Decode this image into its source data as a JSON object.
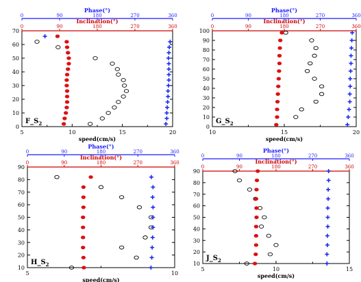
{
  "colors": {
    "inclination": "#dd1111",
    "phase": "#1a2aee",
    "speed": "#000000",
    "red_axis": "#cc0000",
    "blue_axis": "#1a1aff"
  },
  "chart_data": [
    {
      "type": "scatter",
      "panel_label": "F_S",
      "panel_sub": "2",
      "xlabel": "speed(cm/s)",
      "xlim": [
        5,
        20
      ],
      "xticks": [
        "5",
        "10",
        "15",
        "20"
      ],
      "ylim": [
        0,
        70
      ],
      "yticks": [
        "0",
        "10",
        "20",
        "30",
        "40",
        "50",
        "60",
        "70"
      ],
      "top_inclination_title": "Inclination(°)",
      "top_phase_title": "Phase(°)",
      "top_ticks": [
        "0",
        "90",
        "180",
        "270",
        "360"
      ],
      "speed": [
        {
          "depth": 2,
          "value": 11.8
        },
        {
          "depth": 6,
          "value": 13.0
        },
        {
          "depth": 10,
          "value": 13.6
        },
        {
          "depth": 14,
          "value": 14.2
        },
        {
          "depth": 18,
          "value": 14.6
        },
        {
          "depth": 22,
          "value": 15.1
        },
        {
          "depth": 26,
          "value": 15.4
        },
        {
          "depth": 30,
          "value": 15.2
        },
        {
          "depth": 34,
          "value": 15.1
        },
        {
          "depth": 38,
          "value": 14.6
        },
        {
          "depth": 42,
          "value": 14.5
        },
        {
          "depth": 46,
          "value": 14.0
        },
        {
          "depth": 50,
          "value": 12.3
        },
        {
          "depth": 58,
          "value": 8.6
        },
        {
          "depth": 62,
          "value": 6.5
        }
      ],
      "inclination": [
        {
          "depth": 2,
          "value": 100
        },
        {
          "depth": 6,
          "value": 102
        },
        {
          "depth": 10,
          "value": 105
        },
        {
          "depth": 14,
          "value": 107
        },
        {
          "depth": 18,
          "value": 108
        },
        {
          "depth": 22,
          "value": 108
        },
        {
          "depth": 26,
          "value": 108
        },
        {
          "depth": 30,
          "value": 107
        },
        {
          "depth": 34,
          "value": 107
        },
        {
          "depth": 38,
          "value": 108
        },
        {
          "depth": 42,
          "value": 110
        },
        {
          "depth": 46,
          "value": 112
        },
        {
          "depth": 50,
          "value": 112
        },
        {
          "depth": 54,
          "value": 110
        },
        {
          "depth": 58,
          "value": 108
        },
        {
          "depth": 62,
          "value": 107
        },
        {
          "depth": 66,
          "value": 85
        }
      ],
      "phase": [
        {
          "depth": 2,
          "value": 344
        },
        {
          "depth": 6,
          "value": 346
        },
        {
          "depth": 10,
          "value": 346
        },
        {
          "depth": 14,
          "value": 347
        },
        {
          "depth": 18,
          "value": 348
        },
        {
          "depth": 22,
          "value": 349
        },
        {
          "depth": 26,
          "value": 349
        },
        {
          "depth": 30,
          "value": 350
        },
        {
          "depth": 34,
          "value": 351
        },
        {
          "depth": 38,
          "value": 351
        },
        {
          "depth": 42,
          "value": 351
        },
        {
          "depth": 46,
          "value": 351
        },
        {
          "depth": 50,
          "value": 350
        },
        {
          "depth": 54,
          "value": 351
        },
        {
          "depth": 58,
          "value": 352
        },
        {
          "depth": 62,
          "value": 354
        },
        {
          "depth": 66,
          "value": 55
        }
      ]
    },
    {
      "type": "scatter",
      "panel_label": "G_S",
      "panel_sub": "2",
      "xlabel": "speed(cm/s)",
      "xlim": [
        10,
        20
      ],
      "xticks": [
        "10",
        "15",
        "20"
      ],
      "ylim": [
        0,
        100
      ],
      "yticks": [
        "0",
        "10",
        "20",
        "30",
        "40",
        "50",
        "60",
        "70",
        "80",
        "90",
        "100"
      ],
      "top_inclination_title": "Inclination(°)",
      "top_phase_title": "Phase(°)",
      "top_ticks": [
        "0",
        "90",
        "180",
        "270",
        "360"
      ],
      "speed": [
        {
          "depth": 10,
          "value": 15.8
        },
        {
          "depth": 18,
          "value": 16.2
        },
        {
          "depth": 26,
          "value": 17.2
        },
        {
          "depth": 34,
          "value": 17.6
        },
        {
          "depth": 42,
          "value": 17.6
        },
        {
          "depth": 50,
          "value": 17.1
        },
        {
          "depth": 58,
          "value": 16.6
        },
        {
          "depth": 66,
          "value": 16.8
        },
        {
          "depth": 74,
          "value": 17.1
        },
        {
          "depth": 82,
          "value": 17.2
        },
        {
          "depth": 90,
          "value": 16.9
        },
        {
          "depth": 98,
          "value": 15.1
        }
      ],
      "inclination": [
        {
          "depth": 2,
          "value": 160
        },
        {
          "depth": 10,
          "value": 162
        },
        {
          "depth": 18,
          "value": 162
        },
        {
          "depth": 26,
          "value": 163
        },
        {
          "depth": 34,
          "value": 164
        },
        {
          "depth": 42,
          "value": 165
        },
        {
          "depth": 50,
          "value": 166
        },
        {
          "depth": 58,
          "value": 167
        },
        {
          "depth": 66,
          "value": 168
        },
        {
          "depth": 74,
          "value": 168
        },
        {
          "depth": 82,
          "value": 169
        },
        {
          "depth": 90,
          "value": 170
        },
        {
          "depth": 98,
          "value": 174
        }
      ],
      "phase": [
        {
          "depth": 2,
          "value": 338
        },
        {
          "depth": 10,
          "value": 340
        },
        {
          "depth": 18,
          "value": 342
        },
        {
          "depth": 26,
          "value": 344
        },
        {
          "depth": 34,
          "value": 344
        },
        {
          "depth": 42,
          "value": 345
        },
        {
          "depth": 50,
          "value": 345
        },
        {
          "depth": 58,
          "value": 346
        },
        {
          "depth": 66,
          "value": 347
        },
        {
          "depth": 74,
          "value": 347
        },
        {
          "depth": 82,
          "value": 348
        },
        {
          "depth": 90,
          "value": 349
        },
        {
          "depth": 98,
          "value": 350
        }
      ]
    },
    {
      "type": "scatter",
      "panel_label": "H_S",
      "panel_sub": "2",
      "xlabel": "speed(cm/s)",
      "xlim": [
        5,
        10
      ],
      "xticks": [
        "5",
        "10"
      ],
      "ylim": [
        10,
        90
      ],
      "yticks": [
        "10",
        "20",
        "30",
        "40",
        "50",
        "60",
        "70",
        "80",
        "90"
      ],
      "top_inclination_title": "Inclination(°)",
      "top_phase_title": "Phase(°)",
      "top_ticks": [
        "0",
        "90",
        "180",
        "270",
        "360"
      ],
      "speed": [
        {
          "depth": 10,
          "value": 6.5
        },
        {
          "depth": 18,
          "value": 8.7
        },
        {
          "depth": 26,
          "value": 8.2
        },
        {
          "depth": 34,
          "value": 9.0
        },
        {
          "depth": 42,
          "value": 9.2
        },
        {
          "depth": 50,
          "value": 9.2
        },
        {
          "depth": 58,
          "value": 8.8
        },
        {
          "depth": 66,
          "value": 8.2
        },
        {
          "depth": 74,
          "value": 7.5
        },
        {
          "depth": 82,
          "value": 6.0
        }
      ],
      "inclination": [
        {
          "depth": 10,
          "value": 138
        },
        {
          "depth": 18,
          "value": 137
        },
        {
          "depth": 26,
          "value": 136
        },
        {
          "depth": 34,
          "value": 136
        },
        {
          "depth": 42,
          "value": 136
        },
        {
          "depth": 50,
          "value": 136
        },
        {
          "depth": 58,
          "value": 137
        },
        {
          "depth": 66,
          "value": 137
        },
        {
          "depth": 74,
          "value": 137
        },
        {
          "depth": 82,
          "value": 155
        }
      ],
      "phase": [
        {
          "depth": 10,
          "value": 302
        },
        {
          "depth": 18,
          "value": 304
        },
        {
          "depth": 26,
          "value": 305
        },
        {
          "depth": 34,
          "value": 306
        },
        {
          "depth": 42,
          "value": 307
        },
        {
          "depth": 50,
          "value": 307
        },
        {
          "depth": 58,
          "value": 307
        },
        {
          "depth": 66,
          "value": 306
        },
        {
          "depth": 74,
          "value": 307
        },
        {
          "depth": 82,
          "value": 303
        }
      ]
    },
    {
      "type": "scatter",
      "panel_label": "J_S",
      "panel_sub": "2",
      "xlabel": "speed(cm/s)",
      "xlim": [
        5,
        15
      ],
      "xticks": [
        "5",
        "10",
        "15"
      ],
      "ylim": [
        10,
        90
      ],
      "yticks": [
        "10",
        "20",
        "30",
        "40",
        "50",
        "60",
        "70",
        "80",
        "90"
      ],
      "top_inclination_title": "Inclination(°)",
      "top_phase_title": "Phase(°)",
      "top_ticks": [
        "0",
        "90",
        "180",
        "270",
        "360"
      ],
      "speed": [
        {
          "depth": 10,
          "value": 8.0
        },
        {
          "depth": 18,
          "value": 9.6
        },
        {
          "depth": 26,
          "value": 10.0
        },
        {
          "depth": 34,
          "value": 9.5
        },
        {
          "depth": 42,
          "value": 9.0
        },
        {
          "depth": 50,
          "value": 9.2
        },
        {
          "depth": 58,
          "value": 8.9
        },
        {
          "depth": 66,
          "value": 8.6
        },
        {
          "depth": 74,
          "value": 8.2
        },
        {
          "depth": 82,
          "value": 7.5
        },
        {
          "depth": 90,
          "value": 7.2
        }
      ],
      "inclination": [
        {
          "depth": 10,
          "value": 128
        },
        {
          "depth": 18,
          "value": 130
        },
        {
          "depth": 26,
          "value": 131
        },
        {
          "depth": 34,
          "value": 131
        },
        {
          "depth": 42,
          "value": 131
        },
        {
          "depth": 50,
          "value": 132
        },
        {
          "depth": 58,
          "value": 132
        },
        {
          "depth": 66,
          "value": 131
        },
        {
          "depth": 74,
          "value": 132
        },
        {
          "depth": 82,
          "value": 133
        },
        {
          "depth": 90,
          "value": 135
        }
      ],
      "phase": [
        {
          "depth": 10,
          "value": 305
        },
        {
          "depth": 18,
          "value": 305
        },
        {
          "depth": 26,
          "value": 306
        },
        {
          "depth": 34,
          "value": 306
        },
        {
          "depth": 42,
          "value": 307
        },
        {
          "depth": 50,
          "value": 307
        },
        {
          "depth": 58,
          "value": 307
        },
        {
          "depth": 66,
          "value": 308
        },
        {
          "depth": 74,
          "value": 308
        },
        {
          "depth": 82,
          "value": 309
        },
        {
          "depth": 90,
          "value": 309
        }
      ]
    }
  ]
}
